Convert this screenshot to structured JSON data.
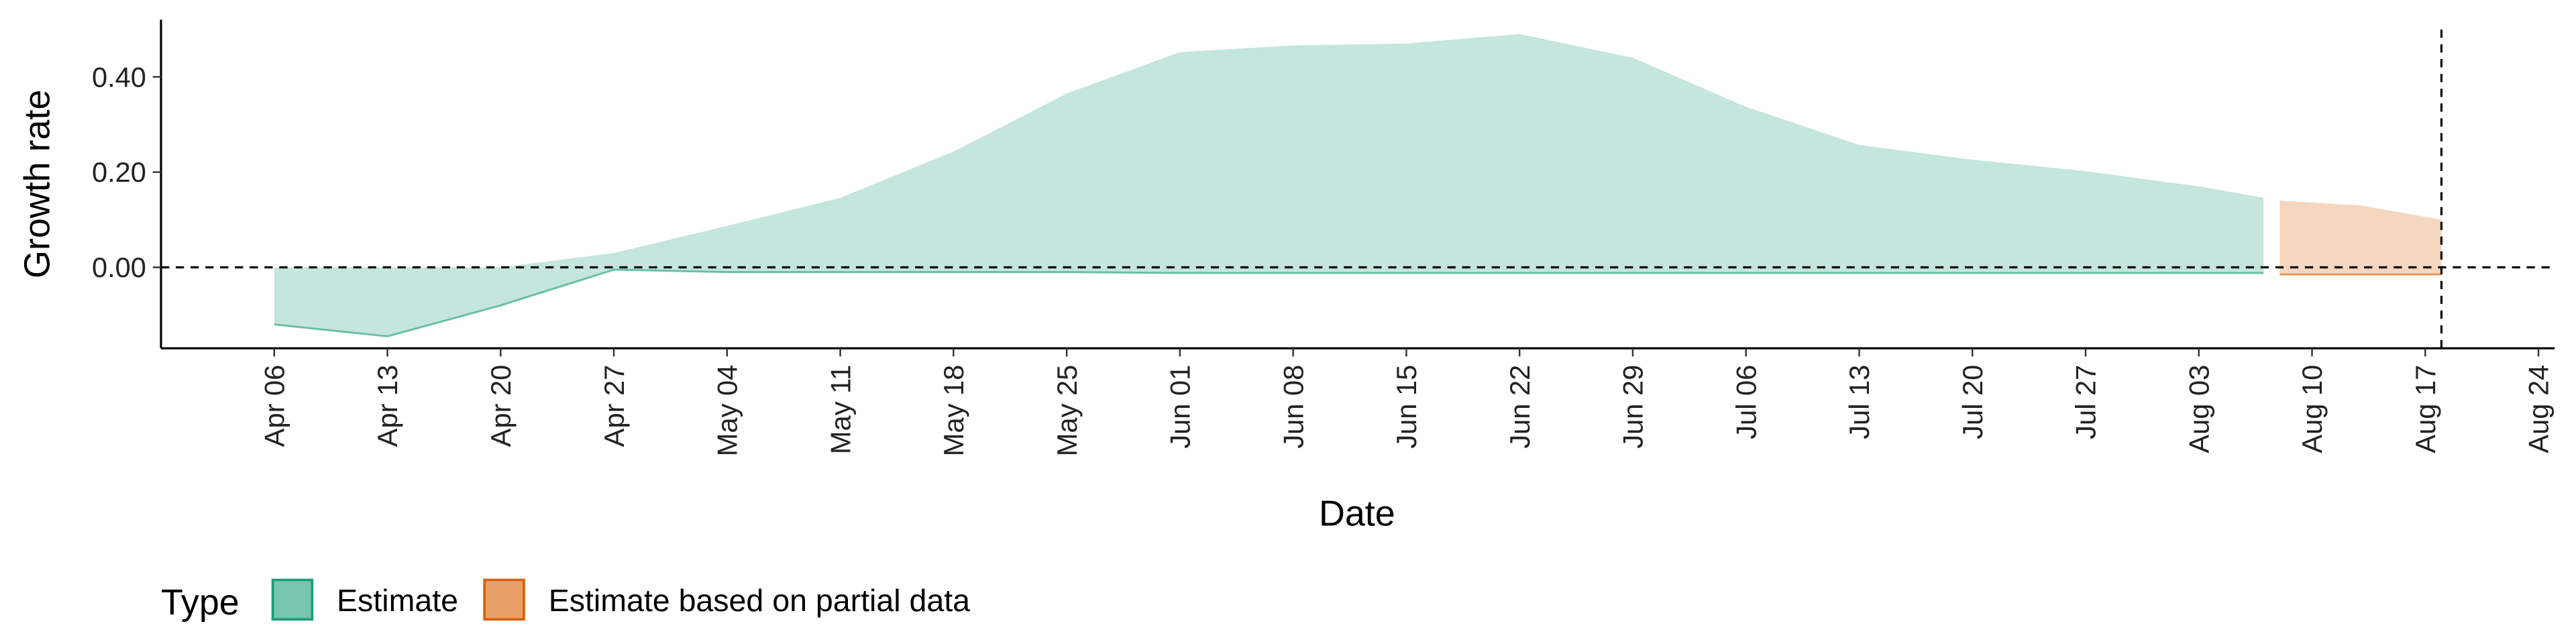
{
  "chart_data": {
    "type": "ribbon",
    "x_label": "Date",
    "y_label": "Growth rate",
    "xlim": [
      "Mar 30",
      "Aug 25"
    ],
    "xticks": [
      "Apr 06",
      "Apr 13",
      "Apr 20",
      "Apr 27",
      "May 04",
      "May 11",
      "May 18",
      "May 25",
      "Jun 01",
      "Jun 08",
      "Jun 15",
      "Jun 22",
      "Jun 29",
      "Jul 06",
      "Jul 13",
      "Jul 20",
      "Jul 27",
      "Aug 03",
      "Aug 10",
      "Aug 17",
      "Aug 24"
    ],
    "ylim": [
      -0.17,
      0.52
    ],
    "yticks": [
      {
        "value": 0,
        "label": "0.00"
      },
      {
        "value": 0.2,
        "label": "0.20"
      },
      {
        "value": 0.4,
        "label": "0.40"
      }
    ],
    "hline": 0,
    "vline": "Aug 18",
    "legend_title": "Type",
    "legend_position": "bottom",
    "series": [
      {
        "name": "Estimate",
        "color": "#1b9e77",
        "x": [
          "Apr 06",
          "Apr 13",
          "Apr 20",
          "Apr 27",
          "May 04",
          "May 11",
          "May 18",
          "May 25",
          "Jun 01",
          "Jun 08",
          "Jun 15",
          "Jun 22",
          "Jun 29",
          "Jul 06",
          "Jul 13",
          "Jul 20",
          "Jul 27",
          "Aug 03",
          "Aug 07"
        ],
        "upper": [
          0.0,
          0.0,
          0.0,
          0.03,
          0.087,
          0.146,
          0.243,
          0.365,
          0.452,
          0.466,
          0.47,
          0.49,
          0.44,
          0.337,
          0.257,
          0.226,
          0.202,
          0.17,
          0.146
        ],
        "lower": [
          -0.12,
          -0.145,
          -0.08,
          -0.005,
          -0.01,
          -0.01,
          -0.01,
          -0.01,
          -0.012,
          -0.012,
          -0.012,
          -0.012,
          -0.012,
          -0.012,
          -0.012,
          -0.012,
          -0.012,
          -0.012,
          -0.012
        ]
      },
      {
        "name": "Estimate based on partial data",
        "color": "#d95f02",
        "x": [
          "Aug 08",
          "Aug 13",
          "Aug 18"
        ],
        "upper": [
          0.14,
          0.13,
          0.1
        ],
        "lower": [
          -0.015,
          -0.015,
          -0.015
        ]
      }
    ]
  }
}
